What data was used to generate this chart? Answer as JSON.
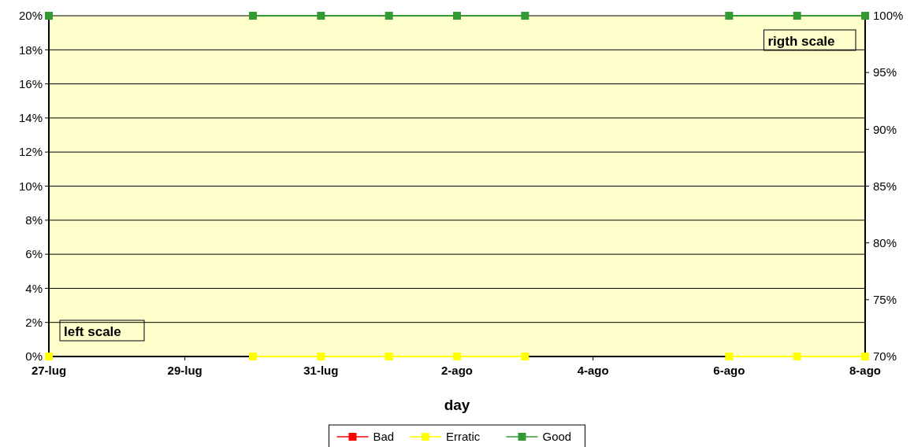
{
  "chart_data": {
    "type": "line",
    "xlabel": "day",
    "x": [
      "--07-27",
      "--07-28",
      "--07-29",
      "--07-30",
      "--07-31",
      "--08-01",
      "--08-02",
      "--08-03",
      "--08-04",
      "--08-05",
      "--08-06",
      "--08-07",
      "--08-08"
    ],
    "series": [
      {
        "name": "Bad",
        "color": "#ff0000",
        "values": [
          null,
          null,
          null,
          null,
          null,
          null,
          null,
          null,
          null,
          null,
          null,
          null,
          null
        ]
      },
      {
        "name": "Erratic",
        "color": "#ffff00",
        "values": [
          0,
          null,
          null,
          0,
          0,
          0,
          0,
          0,
          null,
          null,
          0,
          0,
          0
        ]
      },
      {
        "name": "Good",
        "color": "#339933",
        "axis": "y2",
        "values": [
          100,
          null,
          null,
          100,
          100,
          100,
          100,
          100,
          null,
          null,
          100,
          100,
          100
        ]
      }
    ],
    "xlim": [
      "--07-27",
      "--08-08"
    ],
    "xticks": [
      {
        "value": "--07-27",
        "label": "27-lug"
      },
      {
        "value": "--07-29",
        "label": "29-lug"
      },
      {
        "value": "--07-31",
        "label": "31-lug"
      },
      {
        "value": "--08-02",
        "label": "2-ago"
      },
      {
        "value": "--08-04",
        "label": "4-ago"
      },
      {
        "value": "--08-06",
        "label": "6-ago"
      },
      {
        "value": "--08-08",
        "label": "8-ago"
      }
    ],
    "ylim": [
      0,
      20
    ],
    "yticks": [
      {
        "value": 0,
        "label": "0%"
      },
      {
        "value": 2,
        "label": "2%"
      },
      {
        "value": 4,
        "label": "4%"
      },
      {
        "value": 6,
        "label": "6%"
      },
      {
        "value": 8,
        "label": "8%"
      },
      {
        "value": 10,
        "label": "10%"
      },
      {
        "value": 12,
        "label": "12%"
      },
      {
        "value": 14,
        "label": "14%"
      },
      {
        "value": 16,
        "label": "16%"
      },
      {
        "value": 18,
        "label": "18%"
      },
      {
        "value": 20,
        "label": "20%"
      }
    ],
    "y2lim": [
      70,
      100
    ],
    "y2ticks": [
      {
        "value": 70,
        "label": "70%"
      },
      {
        "value": 75,
        "label": "75%"
      },
      {
        "value": 80,
        "label": "80%"
      },
      {
        "value": 85,
        "label": "85%"
      },
      {
        "value": 90,
        "label": "90%"
      },
      {
        "value": 95,
        "label": "95%"
      },
      {
        "value": 100,
        "label": "100%"
      }
    ],
    "annotations": [
      "left scale",
      "rigth scale"
    ],
    "grid": "y",
    "legend": "bottom",
    "marker": "square",
    "line_style": "solid"
  }
}
